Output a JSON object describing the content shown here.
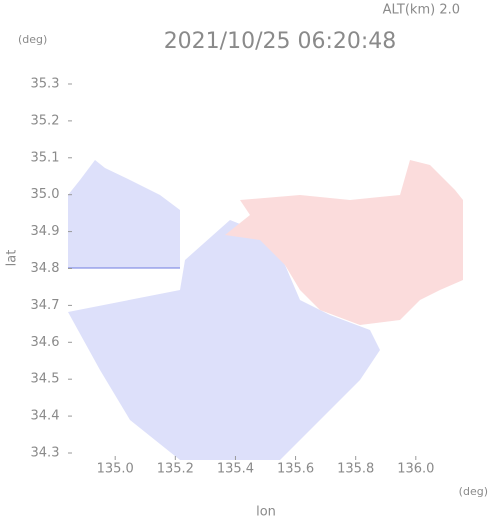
{
  "chart_data": {
    "type": "map",
    "title": "2021/10/25 06:20:48",
    "annotation": "ALT(km) 2.0",
    "xlabel": "lon",
    "ylabel": "lat",
    "xunit": "(deg)",
    "yunit": "(deg)",
    "xlim": [
      134.843,
      136.157
    ],
    "ylim": [
      34.281,
      35.365
    ],
    "xticks": [
      {
        "value": 135,
        "label": "135.0"
      },
      {
        "value": 135.2,
        "label": "135.2"
      },
      {
        "value": 135.4,
        "label": "135.4"
      },
      {
        "value": 135.6,
        "label": "135.6"
      },
      {
        "value": 135.8,
        "label": "135.8"
      },
      {
        "value": 136,
        "label": "136.0"
      }
    ],
    "yticks": [
      {
        "value": 34.3,
        "label": "34.3"
      },
      {
        "value": 34.4,
        "label": "34.4"
      },
      {
        "value": 34.5,
        "label": "34.5"
      },
      {
        "value": 34.6,
        "label": "34.6"
      },
      {
        "value": 34.7,
        "label": "34.7"
      },
      {
        "value": 34.8,
        "label": "34.8"
      },
      {
        "value": 34.9,
        "label": "34.9"
      },
      {
        "value": 35,
        "label": "35.0"
      },
      {
        "value": 35.1,
        "label": "35.1"
      },
      {
        "value": 35.2,
        "label": "35.2"
      },
      {
        "value": 35.3,
        "label": "35.3"
      }
    ]
  }
}
